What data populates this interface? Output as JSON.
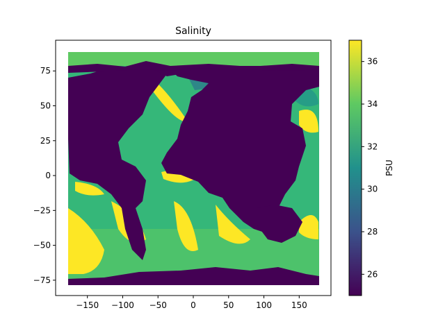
{
  "chart_data": {
    "type": "heatmap",
    "title": "Salinity",
    "xlabel": "",
    "ylabel": "",
    "xlim": [
      -195,
      195
    ],
    "ylim": [
      -86,
      97
    ],
    "x_ticks": [
      -150,
      -100,
      -50,
      0,
      50,
      100,
      150
    ],
    "y_ticks": [
      -75,
      -50,
      -25,
      0,
      25,
      50,
      75
    ],
    "data_extent": {
      "lon": [
        -180,
        180
      ],
      "lat": [
        -78,
        90
      ]
    },
    "colormap": "viridis",
    "colormap_stops": [
      "#440154",
      "#3b528b",
      "#21918c",
      "#5ec962",
      "#fde725"
    ],
    "colorbar": {
      "label": "PSU",
      "range": [
        25,
        37
      ],
      "ticks": [
        26,
        28,
        30,
        32,
        34,
        36
      ]
    },
    "description_values": {
      "land_value_psu": 25,
      "typical_open_ocean_psu": 34.5,
      "high_salinity_regions_psu": 37
    }
  }
}
